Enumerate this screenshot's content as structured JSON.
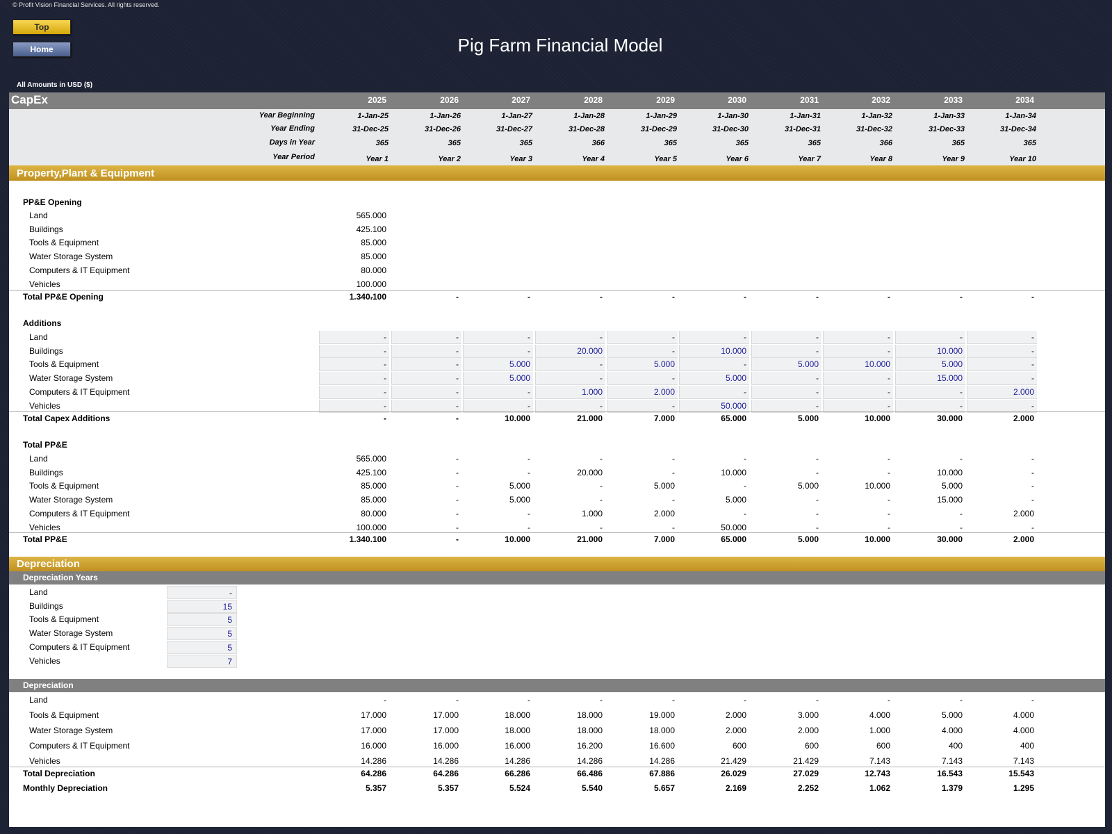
{
  "copyright": "© Profit Vision Financial Services. All rights reserved.",
  "nav": {
    "top_label": "Top",
    "home_label": "Home"
  },
  "title": "Pig Farm Financial Model",
  "amounts_note": "All Amounts in  USD ($)",
  "colors": {
    "background": "#1b2133",
    "gold": "#c8a030",
    "grey_header": "#808080",
    "input_bg": "#f0f1f2",
    "input_text": "#1c1c9a"
  },
  "header": {
    "section": "CapEx",
    "years": [
      "2025",
      "2026",
      "2027",
      "2028",
      "2029",
      "2030",
      "2031",
      "2032",
      "2033",
      "2034"
    ],
    "rows": [
      {
        "label": "Year Beginning",
        "values": [
          "1-Jan-25",
          "1-Jan-26",
          "1-Jan-27",
          "1-Jan-28",
          "1-Jan-29",
          "1-Jan-30",
          "1-Jan-31",
          "1-Jan-32",
          "1-Jan-33",
          "1-Jan-34"
        ]
      },
      {
        "label": "Year Ending",
        "values": [
          "31-Dec-25",
          "31-Dec-26",
          "31-Dec-27",
          "31-Dec-28",
          "31-Dec-29",
          "31-Dec-30",
          "31-Dec-31",
          "31-Dec-32",
          "31-Dec-33",
          "31-Dec-34"
        ]
      },
      {
        "label": "Days in Year",
        "values": [
          "365",
          "365",
          "365",
          "366",
          "365",
          "365",
          "365",
          "366",
          "365",
          "365"
        ]
      },
      {
        "label": "Year Period",
        "values": [
          "Year 1",
          "Year 2",
          "Year 3",
          "Year 4",
          "Year 5",
          "Year 6",
          "Year 7",
          "Year 8",
          "Year 9",
          "Year 10"
        ]
      }
    ]
  },
  "ppe": {
    "title": "Property,Plant & Equipment",
    "opening": {
      "title": "PP&E Opening",
      "items": [
        {
          "label": "Land",
          "value": "565.000"
        },
        {
          "label": "Buildings",
          "value": "425.100"
        },
        {
          "label": "Tools & Equipment",
          "value": "85.000"
        },
        {
          "label": "Water Storage System",
          "value": "85.000"
        },
        {
          "label": "Computers & IT Equipment",
          "value": "80.000"
        },
        {
          "label": "Vehicles",
          "value": "100.000"
        }
      ],
      "total": {
        "label": "Total PP&E Opening",
        "pre": "-",
        "values": [
          "1.340.100",
          "-",
          "-",
          "-",
          "-",
          "-",
          "-",
          "-",
          "-",
          "-"
        ]
      }
    },
    "additions": {
      "title": "Additions",
      "items": [
        {
          "label": "Land",
          "values": [
            "-",
            "-",
            "-",
            "-",
            "-",
            "-",
            "-",
            "-",
            "-",
            "-"
          ]
        },
        {
          "label": "Buildings",
          "values": [
            "-",
            "-",
            "-",
            "20.000",
            "-",
            "10.000",
            "-",
            "-",
            "10.000",
            "-"
          ]
        },
        {
          "label": "Tools & Equipment",
          "values": [
            "-",
            "-",
            "5.000",
            "-",
            "5.000",
            "-",
            "5.000",
            "10.000",
            "5.000",
            "-"
          ]
        },
        {
          "label": "Water Storage System",
          "values": [
            "-",
            "-",
            "5.000",
            "-",
            "-",
            "5.000",
            "-",
            "-",
            "15.000",
            "-"
          ]
        },
        {
          "label": "Computers & IT Equipment",
          "values": [
            "-",
            "-",
            "-",
            "1.000",
            "2.000",
            "-",
            "-",
            "-",
            "-",
            "2.000"
          ]
        },
        {
          "label": "Vehicles",
          "values": [
            "-",
            "-",
            "-",
            "-",
            "-",
            "50.000",
            "-",
            "-",
            "-",
            "-"
          ]
        }
      ],
      "total": {
        "label": "Total Capex Additions",
        "values": [
          "-",
          "-",
          "10.000",
          "21.000",
          "7.000",
          "65.000",
          "5.000",
          "10.000",
          "30.000",
          "2.000"
        ]
      }
    },
    "totals": {
      "title": "Total PP&E",
      "items": [
        {
          "label": "Land",
          "values": [
            "565.000",
            "-",
            "-",
            "-",
            "-",
            "-",
            "-",
            "-",
            "-",
            "-"
          ]
        },
        {
          "label": "Buildings",
          "values": [
            "425.100",
            "-",
            "-",
            "20.000",
            "-",
            "10.000",
            "-",
            "-",
            "10.000",
            "-"
          ]
        },
        {
          "label": "Tools & Equipment",
          "values": [
            "85.000",
            "-",
            "5.000",
            "-",
            "5.000",
            "-",
            "5.000",
            "10.000",
            "5.000",
            "-"
          ]
        },
        {
          "label": "Water Storage System",
          "values": [
            "85.000",
            "-",
            "5.000",
            "-",
            "-",
            "5.000",
            "-",
            "-",
            "15.000",
            "-"
          ]
        },
        {
          "label": "Computers & IT Equipment",
          "values": [
            "80.000",
            "-",
            "-",
            "1.000",
            "2.000",
            "-",
            "-",
            "-",
            "-",
            "2.000"
          ]
        },
        {
          "label": "Vehicles",
          "values": [
            "100.000",
            "-",
            "-",
            "-",
            "-",
            "50.000",
            "-",
            "-",
            "-",
            "-"
          ]
        }
      ],
      "total": {
        "label": "Total PP&E",
        "values": [
          "1.340.100",
          "-",
          "10.000",
          "21.000",
          "7.000",
          "65.000",
          "5.000",
          "10.000",
          "30.000",
          "2.000"
        ]
      }
    }
  },
  "depreciation": {
    "title": "Depreciation",
    "years_title": "Depreciation Years",
    "years_items": [
      {
        "label": "Land",
        "value": "-"
      },
      {
        "label": "Buildings",
        "value": "15"
      },
      {
        "label": "Tools & Equipment",
        "value": "5"
      },
      {
        "label": "Water Storage System",
        "value": "5"
      },
      {
        "label": "Computers & IT Equipment",
        "value": "5"
      },
      {
        "label": "Vehicles",
        "value": "7"
      }
    ],
    "schedule_title": "Depreciation",
    "items": [
      {
        "label": "Land",
        "values": [
          "-",
          "-",
          "-",
          "-",
          "-",
          "-",
          "-",
          "-",
          "-",
          "-"
        ]
      },
      {
        "label": "Tools & Equipment",
        "values": [
          "17.000",
          "17.000",
          "18.000",
          "18.000",
          "19.000",
          "2.000",
          "3.000",
          "4.000",
          "5.000",
          "4.000"
        ]
      },
      {
        "label": "Water Storage System",
        "values": [
          "17.000",
          "17.000",
          "18.000",
          "18.000",
          "18.000",
          "2.000",
          "2.000",
          "1.000",
          "4.000",
          "4.000"
        ]
      },
      {
        "label": "Computers & IT Equipment",
        "values": [
          "16.000",
          "16.000",
          "16.000",
          "16.200",
          "16.600",
          "600",
          "600",
          "600",
          "400",
          "400"
        ]
      },
      {
        "label": "Vehicles",
        "values": [
          "14.286",
          "14.286",
          "14.286",
          "14.286",
          "14.286",
          "21.429",
          "21.429",
          "7.143",
          "7.143",
          "7.143"
        ]
      }
    ],
    "total": {
      "label": "Total Depreciation",
      "values": [
        "64.286",
        "64.286",
        "66.286",
        "66.486",
        "67.886",
        "26.029",
        "27.029",
        "12.743",
        "16.543",
        "15.543"
      ]
    },
    "monthly": {
      "label": "Monthly Depreciation",
      "values": [
        "5.357",
        "5.357",
        "5.524",
        "5.540",
        "5.657",
        "2.169",
        "2.252",
        "1.062",
        "1.379",
        "1.295"
      ]
    }
  }
}
